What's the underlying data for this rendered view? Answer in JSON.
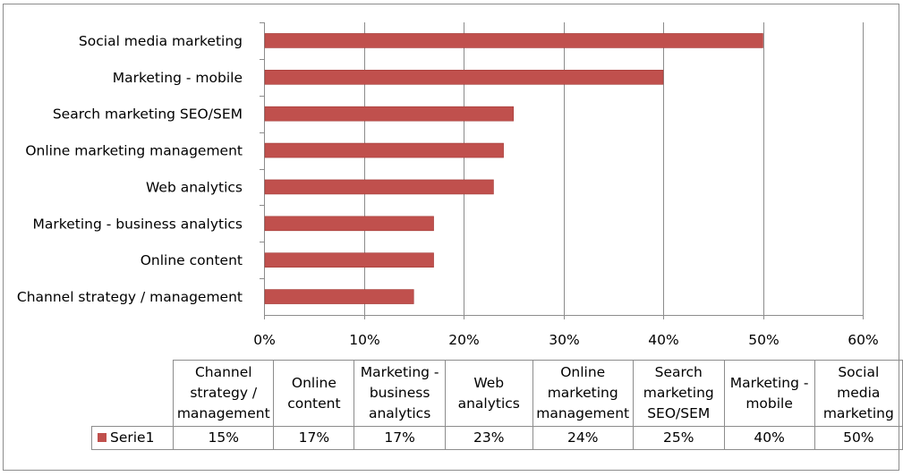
{
  "chart_data": {
    "type": "bar",
    "orientation": "horizontal",
    "categories": [
      "Channel strategy / management",
      "Online content",
      "Marketing - business analytics",
      "Web analytics",
      "Online marketing management",
      "Search marketing SEO/SEM",
      "Marketing - mobile",
      "Social media marketing"
    ],
    "series": [
      {
        "name": "Serie1",
        "values": [
          15,
          17,
          17,
          23,
          24,
          25,
          40,
          50
        ]
      }
    ],
    "xlim": [
      0,
      60
    ],
    "x_ticks": [
      "0%",
      "10%",
      "20%",
      "30%",
      "40%",
      "50%",
      "60%"
    ],
    "value_labels": [
      "15%",
      "17%",
      "17%",
      "23%",
      "24%",
      "25%",
      "40%",
      "50%"
    ],
    "table_headers": [
      [
        "Channel",
        "strategy /",
        "management"
      ],
      [
        "Online",
        "content"
      ],
      [
        "Marketing -",
        "business",
        "analytics"
      ],
      [
        "Web",
        "analytics"
      ],
      [
        "Online",
        "marketing",
        "management"
      ],
      [
        "Search",
        "marketing",
        "SEO/SEM"
      ],
      [
        "Marketing -",
        "mobile"
      ],
      [
        "Social media",
        "marketing"
      ]
    ],
    "grid": true,
    "legend": "data-table",
    "bar_color": "#c0504d"
  }
}
